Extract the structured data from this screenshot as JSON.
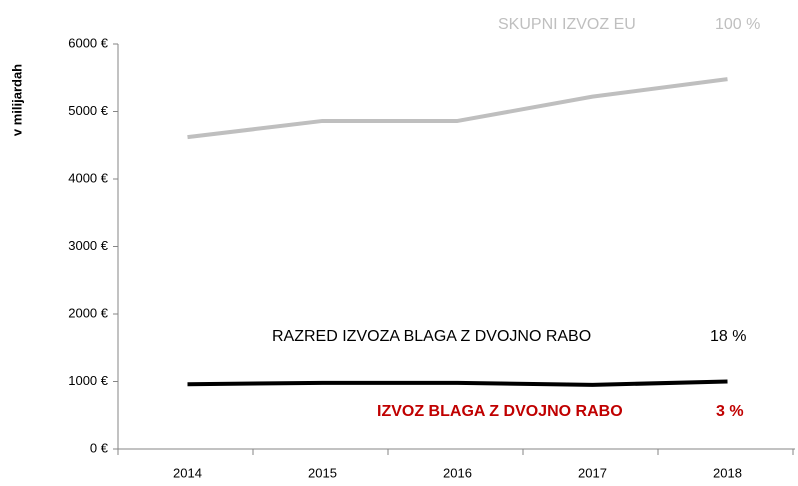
{
  "chart_data": {
    "type": "line",
    "y_label": "v milijardah",
    "categories": [
      "2014",
      "2015",
      "2016",
      "2017",
      "2018"
    ],
    "series": [
      {
        "name": "SKUPNI IZVOZ EU",
        "share": "100 %",
        "color": "#bfbfbf",
        "values": [
          4620,
          4860,
          4860,
          5220,
          5480
        ]
      },
      {
        "name": "RAZRED IZVOZA BLAGA Z DVOJNO RABO",
        "share": "18 %",
        "color": "#000000",
        "values": [
          960,
          980,
          980,
          950,
          1000
        ]
      }
    ],
    "annotations": [
      {
        "text": "IZVOZ BLAGA Z DVOJNO RABO",
        "share": "3 %",
        "color": "#c00000"
      }
    ],
    "ylim": [
      0,
      6000
    ],
    "yticks": [
      {
        "value": 0,
        "label": "0 €"
      },
      {
        "value": 1000,
        "label": "1000 €"
      },
      {
        "value": 2000,
        "label": "2000 €"
      },
      {
        "value": 3000,
        "label": "3000 €"
      },
      {
        "value": 4000,
        "label": "4000 €"
      },
      {
        "value": 5000,
        "label": "5000 €"
      },
      {
        "value": 6000,
        "label": "6000 €"
      }
    ],
    "grid": false
  }
}
